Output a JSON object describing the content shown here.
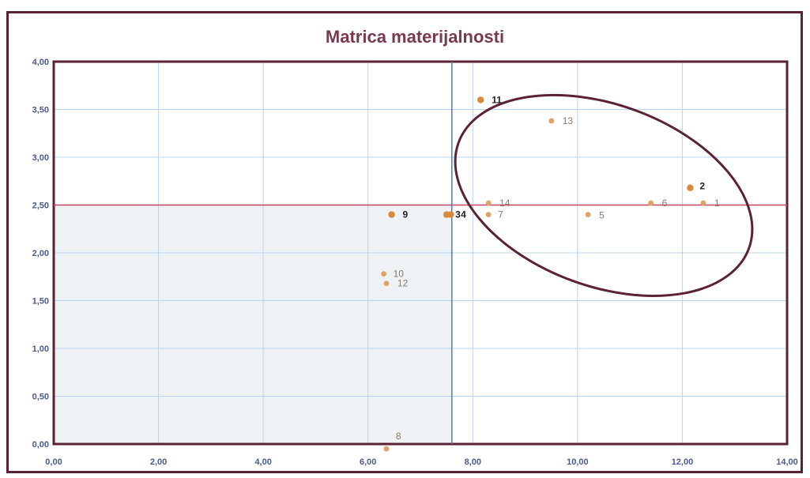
{
  "chart_data": {
    "type": "scatter",
    "title": "Matrica materijalnosti",
    "xlabel": "",
    "ylabel": "",
    "xlim": [
      0,
      14
    ],
    "ylim": [
      0,
      4
    ],
    "x_ticks": [
      "0,00",
      "2,00",
      "4,00",
      "6,00",
      "8,00",
      "10,00",
      "12,00",
      "14,00"
    ],
    "y_ticks": [
      "0,00",
      "0,50",
      "1,00",
      "1,50",
      "2,00",
      "2,50",
      "3,00",
      "3,50",
      "4,00"
    ],
    "grid": true,
    "threshold_lines": {
      "x": 7.6,
      "y": 2.5
    },
    "shaded_region": {
      "x": [
        0,
        7.6
      ],
      "y": [
        0,
        2.5
      ]
    },
    "highlight_ellipse": {
      "cx": 10.5,
      "cy": 2.6,
      "rx": 2.95,
      "ry": 0.95,
      "rotation_deg": 20
    },
    "colors": {
      "point": "#e0a066",
      "point_strong": "#d98a3a",
      "threshold_h": "#c2475f",
      "threshold_v": "#4a7bbf",
      "ellipse": "#5b2236",
      "grid": "#b9d4ee",
      "shade": "#eef2f5"
    },
    "points": [
      {
        "label": "1",
        "x": 12.4,
        "y": 2.52,
        "strong": false
      },
      {
        "label": "2",
        "x": 12.15,
        "y": 2.68,
        "strong": true
      },
      {
        "label": "3",
        "x": 7.5,
        "y": 2.4,
        "strong": true
      },
      {
        "label": "4",
        "x": 7.58,
        "y": 2.4,
        "strong": true
      },
      {
        "label": "5",
        "x": 10.2,
        "y": 2.4,
        "strong": false
      },
      {
        "label": "6",
        "x": 11.4,
        "y": 2.52,
        "strong": false
      },
      {
        "label": "7",
        "x": 8.3,
        "y": 2.4,
        "strong": false
      },
      {
        "label": "8",
        "x": 6.35,
        "y": -0.05,
        "strong": false
      },
      {
        "label": "9",
        "x": 6.45,
        "y": 2.4,
        "strong": true
      },
      {
        "label": "10",
        "x": 6.3,
        "y": 1.78,
        "strong": false
      },
      {
        "label": "11",
        "x": 8.15,
        "y": 3.6,
        "strong": true
      },
      {
        "label": "12",
        "x": 6.35,
        "y": 1.68,
        "strong": false
      },
      {
        "label": "13",
        "x": 9.5,
        "y": 3.38,
        "strong": false
      },
      {
        "label": "14",
        "x": 8.3,
        "y": 2.52,
        "strong": false
      }
    ],
    "point_label_texts": [
      "1",
      "2",
      "3",
      "4",
      "5",
      "6",
      "7",
      "8",
      "9",
      "10",
      "11",
      "12",
      "13",
      "14"
    ]
  }
}
